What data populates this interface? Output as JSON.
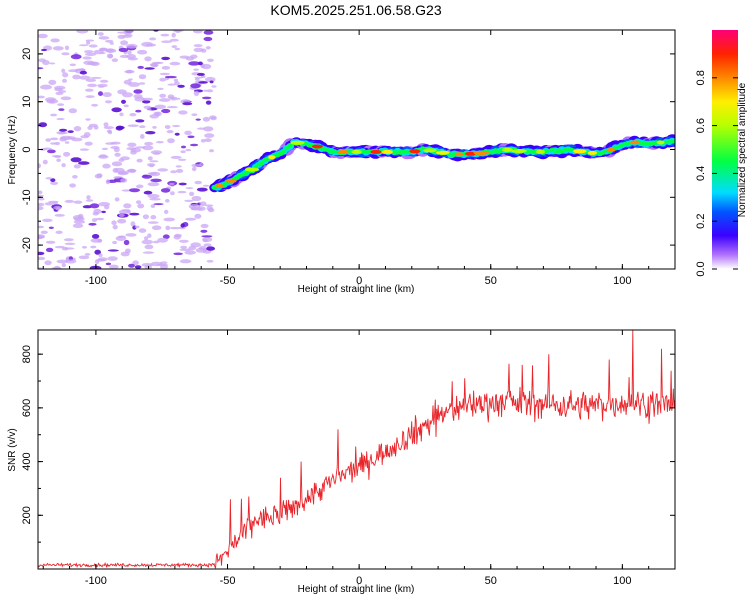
{
  "title": "KOM5.2025.251.06.58.G23",
  "chart_data": [
    {
      "type": "heatmap",
      "name": "spectrogram",
      "xlabel": "Height of straight line (km)",
      "ylabel": "Frequency (Hz)",
      "xlim": [
        -122,
        120
      ],
      "ylim": [
        -25,
        25
      ],
      "x_ticks": [
        -100,
        -50,
        0,
        50,
        100
      ],
      "y_ticks": [
        -20,
        -10,
        0,
        10,
        20
      ],
      "colorbar": {
        "label": "Normalized spectral amplitude",
        "range": [
          0,
          1
        ],
        "ticks": [
          0.0,
          0.2,
          0.4,
          0.6,
          0.8
        ],
        "tick_labels": [
          "0.0",
          "0.2",
          "0.4",
          "0.6",
          "0.8"
        ]
      },
      "noise_region_x": [
        -122,
        -55
      ],
      "signal_track": {
        "x": [
          -55,
          -50,
          -45,
          -40,
          -35,
          -30,
          -25,
          -20,
          -15,
          -10,
          -5,
          0,
          10,
          20,
          25,
          30,
          35,
          40,
          45,
          50,
          55,
          60,
          70,
          80,
          85,
          90,
          95,
          100,
          105,
          110,
          115,
          120
        ],
        "freq": [
          -8,
          -7,
          -5.5,
          -4,
          -2,
          -1,
          1.5,
          1.2,
          0.5,
          -0.5,
          -0.5,
          -0.5,
          -0.5,
          -0.5,
          0,
          -0.5,
          -1,
          -1,
          -0.8,
          -0.5,
          0,
          -0.3,
          -0.5,
          0,
          -0.5,
          -0.8,
          -0.3,
          1,
          1.5,
          1.2,
          1.5,
          1.8
        ]
      }
    },
    {
      "type": "line",
      "name": "snr",
      "xlabel": "Height of straight line (km)",
      "ylabel": "SNR (v/v)",
      "xlim": [
        -122,
        120
      ],
      "ylim": [
        0,
        890
      ],
      "x_ticks": [
        -100,
        -50,
        0,
        50,
        100
      ],
      "y_ticks": [
        200,
        400,
        600,
        800
      ],
      "color": "#e8252a",
      "trend": {
        "x": [
          -122,
          -56,
          -52,
          -45,
          -40,
          -35,
          -30,
          -20,
          -10,
          0,
          10,
          20,
          30,
          40,
          50,
          60,
          70,
          80,
          90,
          100,
          110,
          120
        ],
        "y": [
          15,
          15,
          40,
          120,
          180,
          190,
          200,
          260,
          330,
          380,
          440,
          500,
          570,
          610,
          620,
          620,
          615,
          610,
          610,
          620,
          615,
          610
        ]
      },
      "noise_amplitude": 55,
      "peaks": [
        {
          "x": -49,
          "y": 260
        },
        {
          "x": -42,
          "y": 270
        },
        {
          "x": -30,
          "y": 340
        },
        {
          "x": -22,
          "y": 400
        },
        {
          "x": -8,
          "y": 520
        },
        {
          "x": 20,
          "y": 550
        },
        {
          "x": 40,
          "y": 710
        },
        {
          "x": 62,
          "y": 760
        },
        {
          "x": 72,
          "y": 800
        },
        {
          "x": 95,
          "y": 780
        },
        {
          "x": 104,
          "y": 890
        },
        {
          "x": 115,
          "y": 820
        }
      ]
    }
  ]
}
